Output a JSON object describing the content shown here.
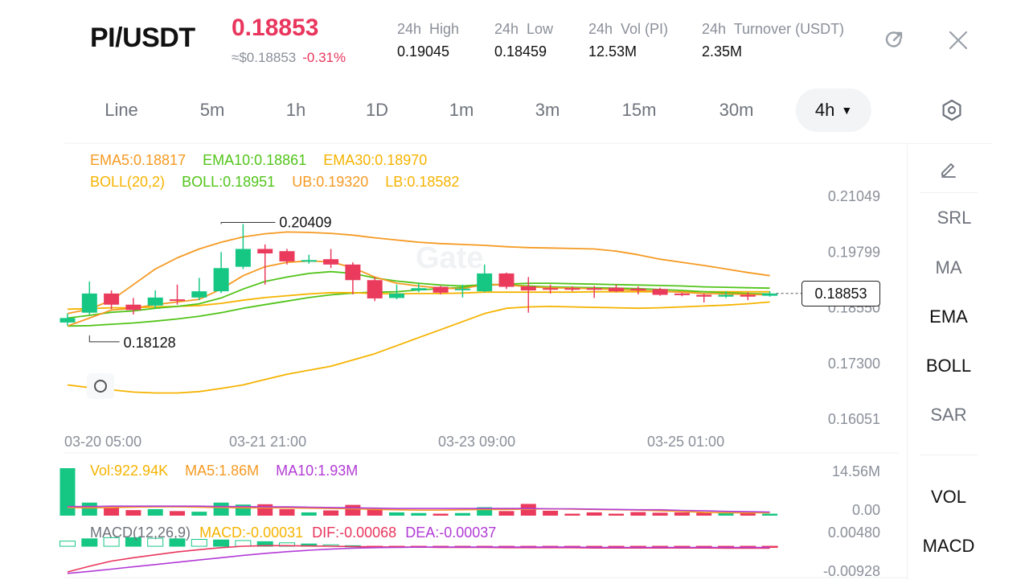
{
  "header": {
    "pair": "PI/USDT",
    "price": "0.18853",
    "usd_price": "≈$0.18853",
    "change": "-0.31%",
    "stats": [
      {
        "label": "24h  High",
        "value": "0.19045"
      },
      {
        "label": "24h  Low",
        "value": "0.18459"
      },
      {
        "label": "24h  Vol (PI)",
        "value": "12.53M"
      },
      {
        "label": "24h  Turnover (USDT)",
        "value": "2.35M"
      }
    ],
    "refresh_icon": "refresh-icon",
    "close_icon": "close-icon"
  },
  "tabs": [
    {
      "label": "Line"
    },
    {
      "label": "5m"
    },
    {
      "label": "1h"
    },
    {
      "label": "1D"
    },
    {
      "label": "1m"
    },
    {
      "label": "3m"
    },
    {
      "label": "15m"
    },
    {
      "label": "30m"
    },
    {
      "label": "4h",
      "active": true
    }
  ],
  "settings_icon": "settings-icon",
  "indicators": {
    "ema": [
      "EMA5:0.18817",
      "EMA10:0.18861",
      "EMA30:0.18970"
    ],
    "boll": [
      "BOLL(20,2)",
      "BOLL:0.18951",
      "UB:0.19320",
      "LB:0.18582"
    ],
    "vol": [
      "Vol:922.94K",
      "MA5:1.86M",
      "MA10:1.93M"
    ],
    "macd": [
      "MACD(12,26,9)",
      "MACD:-0.00031",
      "DIF:-0.00068",
      "DEA:-0.00037"
    ]
  },
  "chart_data": {
    "type": "candlestick",
    "price_axis": [
      "0.21049",
      "0.19799",
      "0.18550",
      "0.17300",
      "0.16051"
    ],
    "time_axis": [
      "03-20 05:00",
      "03-21 21:00",
      "03-23 09:00",
      "03-25 01:00"
    ],
    "high_marker": "0.20409",
    "low_marker": "0.18128",
    "current_price": "0.18853",
    "vol_axis": [
      "14.56M",
      "0.00"
    ],
    "macd_axis": [
      "0.00480",
      "-0.00928"
    ],
    "colors": {
      "up": "#16c784",
      "down": "#ea3b5d",
      "ema5": "#f59a23",
      "ema10": "#52c41a",
      "ema30": "#f5b300",
      "boll": "#f5b300",
      "ma5": "#f59a23",
      "ma10": "#b23bd6",
      "dif": "#e8365d",
      "dea": "#b23bd6"
    },
    "candles": [
      {
        "o": 0.182,
        "h": 0.184,
        "c": 0.183,
        "l": 0.1813
      },
      {
        "o": 0.1842,
        "h": 0.1912,
        "c": 0.1885,
        "l": 0.1838
      },
      {
        "o": 0.1885,
        "h": 0.1892,
        "c": 0.186,
        "l": 0.185
      },
      {
        "o": 0.186,
        "h": 0.1875,
        "c": 0.1848,
        "l": 0.1838
      },
      {
        "o": 0.1858,
        "h": 0.1892,
        "c": 0.1876,
        "l": 0.1852
      },
      {
        "o": 0.1872,
        "h": 0.1905,
        "c": 0.187,
        "l": 0.186
      },
      {
        "o": 0.1876,
        "h": 0.192,
        "c": 0.189,
        "l": 0.187
      },
      {
        "o": 0.189,
        "h": 0.1978,
        "c": 0.1942,
        "l": 0.1886
      },
      {
        "o": 0.1945,
        "h": 0.2041,
        "c": 0.1985,
        "l": 0.194
      },
      {
        "o": 0.1985,
        "h": 0.1995,
        "c": 0.1975,
        "l": 0.1905
      },
      {
        "o": 0.198,
        "h": 0.1985,
        "c": 0.1957,
        "l": 0.195
      },
      {
        "o": 0.1957,
        "h": 0.1972,
        "c": 0.196,
        "l": 0.1952
      },
      {
        "o": 0.1962,
        "h": 0.1985,
        "c": 0.195,
        "l": 0.1942
      },
      {
        "o": 0.195,
        "h": 0.1955,
        "c": 0.1915,
        "l": 0.1883
      },
      {
        "o": 0.1915,
        "h": 0.1922,
        "c": 0.1874,
        "l": 0.1868
      },
      {
        "o": 0.1875,
        "h": 0.1905,
        "c": 0.1885,
        "l": 0.1872
      },
      {
        "o": 0.1892,
        "h": 0.1908,
        "c": 0.1897,
        "l": 0.1888
      },
      {
        "o": 0.19,
        "h": 0.1902,
        "c": 0.1887,
        "l": 0.1883
      },
      {
        "o": 0.1896,
        "h": 0.1905,
        "c": 0.1896,
        "l": 0.1876
      },
      {
        "o": 0.189,
        "h": 0.195,
        "c": 0.193,
        "l": 0.1888
      },
      {
        "o": 0.193,
        "h": 0.1932,
        "c": 0.19,
        "l": 0.1895
      },
      {
        "o": 0.1901,
        "h": 0.1922,
        "c": 0.1892,
        "l": 0.1842
      },
      {
        "o": 0.1897,
        "h": 0.1905,
        "c": 0.1895,
        "l": 0.1885
      },
      {
        "o": 0.1897,
        "h": 0.1901,
        "c": 0.1896,
        "l": 0.189
      },
      {
        "o": 0.1897,
        "h": 0.1902,
        "c": 0.1896,
        "l": 0.1875
      },
      {
        "o": 0.1898,
        "h": 0.1905,
        "c": 0.189,
        "l": 0.1888
      },
      {
        "o": 0.1896,
        "h": 0.1901,
        "c": 0.1892,
        "l": 0.1883
      },
      {
        "o": 0.1895,
        "h": 0.1898,
        "c": 0.1882,
        "l": 0.188
      },
      {
        "o": 0.1885,
        "h": 0.1887,
        "c": 0.1882,
        "l": 0.1879
      },
      {
        "o": 0.1882,
        "h": 0.1885,
        "c": 0.1878,
        "l": 0.1865
      },
      {
        "o": 0.1878,
        "h": 0.189,
        "c": 0.1882,
        "l": 0.1875
      },
      {
        "o": 0.1882,
        "h": 0.1888,
        "c": 0.1878,
        "l": 0.187
      },
      {
        "o": 0.188,
        "h": 0.189,
        "c": 0.1885,
        "l": 0.1878
      }
    ],
    "ema5": [
      0.1812,
      0.183,
      0.1848,
      0.1852,
      0.186,
      0.1866,
      0.1872,
      0.1895,
      0.1925,
      0.1945,
      0.1955,
      0.1958,
      0.1956,
      0.1943,
      0.1922,
      0.1908,
      0.1902,
      0.1897,
      0.1896,
      0.1905,
      0.1905,
      0.19,
      0.1898,
      0.1897,
      0.1896,
      0.1894,
      0.1892,
      0.189,
      0.1888,
      0.1885,
      0.1884,
      0.1883,
      0.1882
    ],
    "ema10": [
      0.183,
      0.1836,
      0.1843,
      0.1846,
      0.1852,
      0.1856,
      0.1862,
      0.1875,
      0.1895,
      0.1912,
      0.1922,
      0.193,
      0.1934,
      0.193,
      0.192,
      0.1913,
      0.1908,
      0.1904,
      0.1902,
      0.1905,
      0.1905,
      0.1902,
      0.19,
      0.1899,
      0.1898,
      0.1897,
      0.1896,
      0.1894,
      0.1892,
      0.1889,
      0.1887,
      0.1885,
      0.1884
    ],
    "ema30": [
      0.185,
      0.1851,
      0.1853,
      0.1853,
      0.1855,
      0.1856,
      0.1858,
      0.1863,
      0.187,
      0.1876,
      0.188,
      0.1884,
      0.1887,
      0.1887,
      0.1885,
      0.1884,
      0.1885,
      0.1885,
      0.1886,
      0.1888,
      0.1888,
      0.1888,
      0.1888,
      0.1888,
      0.1889,
      0.1889,
      0.1889,
      0.1889,
      0.1889,
      0.1889,
      0.1889,
      0.1889,
      0.1889
    ],
    "boll_mid": [
      0.1812,
      0.1813,
      0.1816,
      0.1819,
      0.1823,
      0.1828,
      0.1834,
      0.1842,
      0.1852,
      0.186,
      0.1868,
      0.1876,
      0.1882,
      0.1886,
      0.1888,
      0.1889,
      0.1893,
      0.1896,
      0.1899,
      0.1903,
      0.1906,
      0.1908,
      0.1908,
      0.1907,
      0.1906,
      0.1905,
      0.1904,
      0.1903,
      0.1902,
      0.19,
      0.1899,
      0.1898,
      0.1897
    ],
    "boll_ub": [
      0.184,
      0.185,
      0.187,
      0.1905,
      0.194,
      0.1965,
      0.1985,
      0.2,
      0.2012,
      0.2019,
      0.2023,
      0.2022,
      0.202,
      0.2016,
      0.201,
      0.2005,
      0.2,
      0.1997,
      0.1995,
      0.1993,
      0.199,
      0.1988,
      0.1987,
      0.1986,
      0.1985,
      0.198,
      0.1972,
      0.1962,
      0.1955,
      0.1948,
      0.194,
      0.1932,
      0.1925
    ],
    "boll_lb": [
      0.168,
      0.1674,
      0.1669,
      0.1664,
      0.1662,
      0.1662,
      0.1665,
      0.1672,
      0.168,
      0.1692,
      0.1704,
      0.1713,
      0.1722,
      0.1736,
      0.175,
      0.1768,
      0.1786,
      0.1804,
      0.1822,
      0.184,
      0.1852,
      0.1855,
      0.1856,
      0.1855,
      0.1854,
      0.1853,
      0.1852,
      0.1853,
      0.1855,
      0.1857,
      0.1859,
      0.1862,
      0.1866
    ],
    "volume": [
      14.56,
      4.0,
      2.4,
      1.7,
      2.0,
      1.4,
      1.2,
      4.0,
      3.4,
      3.5,
      2.0,
      1.0,
      1.6,
      3.3,
      2.0,
      1.0,
      0.8,
      0.6,
      0.8,
      2.6,
      1.4,
      3.6,
      1.5,
      0.6,
      1.0,
      0.6,
      1.1,
      0.9,
      1.0,
      0.9,
      1.0,
      0.8,
      0.6
    ],
    "vol_ma5": [
      2.5,
      2.4,
      2.5,
      2.6,
      2.7,
      2.7,
      2.6,
      2.5,
      2.4,
      2.4,
      2.4,
      2.3,
      2.2,
      2.1,
      1.9,
      1.8,
      1.7,
      1.7,
      1.8,
      1.9,
      1.9,
      2.0,
      2.1,
      2.0,
      1.9,
      1.8,
      1.7,
      1.5,
      1.3,
      1.0,
      0.9,
      0.9,
      0.9
    ],
    "vol_ma10": [
      2.8,
      2.8,
      2.9,
      2.9,
      2.9,
      2.9,
      2.9,
      2.8,
      2.8,
      2.7,
      2.7,
      2.6,
      2.5,
      2.4,
      2.3,
      2.2,
      2.2,
      2.2,
      2.2,
      2.2,
      2.2,
      2.2,
      2.1,
      2.1,
      2.0,
      1.9,
      1.8,
      1.8,
      1.6,
      1.5,
      1.3,
      1.2,
      1.1
    ],
    "macd_hist": [
      0.0018,
      0.0026,
      0.003,
      0.003,
      0.0028,
      0.0026,
      0.0024,
      0.0022,
      0.002,
      0.0016,
      0.0012,
      0.0008,
      0.0005,
      0.0002,
      -0.0001,
      -0.0002,
      -0.0002,
      -0.0002,
      -0.0002,
      -0.0001,
      -0.0001,
      -0.0002,
      -0.0002,
      -0.0002,
      -0.0002,
      -0.0003,
      -0.0003,
      -0.0003,
      -0.0003,
      -0.0003,
      -0.0003,
      -0.0003,
      -0.0003
    ],
    "dif": [
      -0.009,
      -0.007,
      -0.0052,
      -0.004,
      -0.003,
      -0.002,
      -0.0012,
      -0.0005,
      0.0,
      0.0002,
      0.0002,
      0.0001,
      0.0,
      -0.0001,
      -0.0002,
      -0.0003,
      -0.0003,
      -0.0004,
      -0.0004,
      -0.0004,
      -0.0005,
      -0.0005,
      -0.0005,
      -0.0005,
      -0.0006,
      -0.0006,
      -0.0006,
      -0.0006,
      -0.0006,
      -0.0006,
      -0.0007,
      -0.0007,
      -0.0007
    ],
    "dea": [
      -0.0095,
      -0.0088,
      -0.008,
      -0.0072,
      -0.0064,
      -0.0056,
      -0.0048,
      -0.004,
      -0.0032,
      -0.0025,
      -0.0019,
      -0.0014,
      -0.001,
      -0.0007,
      -0.0005,
      -0.0004,
      -0.0003,
      -0.0003,
      -0.0003,
      -0.0003,
      -0.0003,
      -0.0003,
      -0.0003,
      -0.0003,
      -0.0004,
      -0.0004,
      -0.0004,
      -0.0004,
      -0.0004,
      -0.0004,
      -0.0004,
      -0.0004,
      -0.0004
    ]
  },
  "side_menu": [
    {
      "label": "SRL",
      "dim": true
    },
    {
      "label": "MA",
      "dim": true
    },
    {
      "label": "EMA",
      "dim": false
    },
    {
      "label": "BOLL",
      "dim": false
    },
    {
      "label": "SAR",
      "dim": true
    },
    {
      "label": "VOL",
      "dim": false
    },
    {
      "label": "MACD",
      "dim": false
    }
  ],
  "edit_icon": "edit-pencil-icon"
}
